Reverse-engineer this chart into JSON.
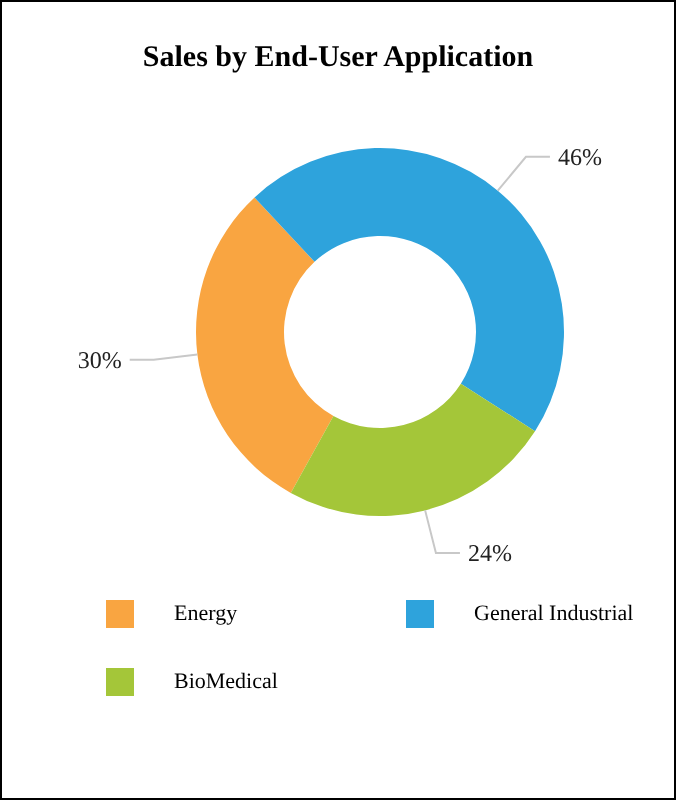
{
  "chart_data": {
    "type": "donut",
    "title": "Sales by End-User Application",
    "categories": [
      "Energy",
      "General Industrial",
      "BioMedical"
    ],
    "values": [
      30,
      46,
      24
    ],
    "value_labels": [
      "30%",
      "46%",
      "24%"
    ],
    "colors": [
      "#f9a541",
      "#2ea3dc",
      "#a4c639"
    ],
    "legend": "bottom"
  }
}
